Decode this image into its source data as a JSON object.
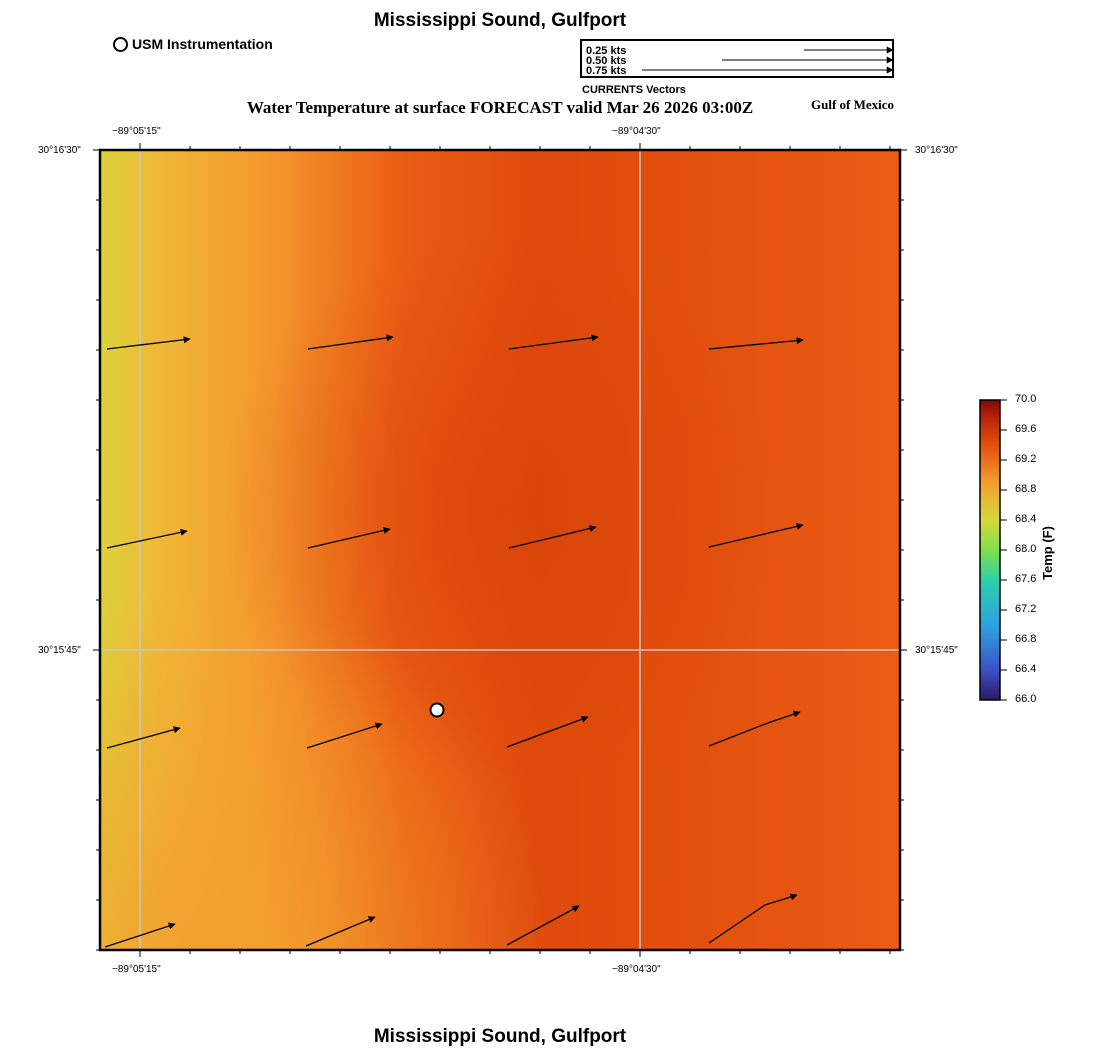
{
  "title": "Mississippi Sound, Gulfport",
  "subtitle": "Water Temperature at surface FORECAST valid Mar 26 2026 03:00Z",
  "region_label": "Gulf of Mexico",
  "legend": {
    "station_label": "USM Instrumentation"
  },
  "vector_key": {
    "title": "CURRENTS Vectors",
    "entries": [
      {
        "label": "0.25 kts",
        "speed": 0.25
      },
      {
        "label": "0.50 kts",
        "speed": 0.5
      },
      {
        "label": "0.75 kts",
        "speed": 0.75
      }
    ]
  },
  "axes": {
    "lon_ticks": [
      "−89°05'15\"",
      "−89°04'30\""
    ],
    "lat_ticks": [
      "30°16'30\"",
      "30°15'45\""
    ]
  },
  "colorbar": {
    "label": "Temp (F)",
    "min": 66.0,
    "max": 70.0,
    "ticks": [
      "70.0",
      "69.6",
      "69.2",
      "68.8",
      "68.4",
      "68.0",
      "67.6",
      "67.2",
      "66.8",
      "66.4",
      "66.0"
    ]
  },
  "colors": {
    "field_warm": "#d9420a",
    "field_mid": "#ea5a12",
    "field_cool": "#f29a2e",
    "field_coolest": "#ddd83a"
  }
}
